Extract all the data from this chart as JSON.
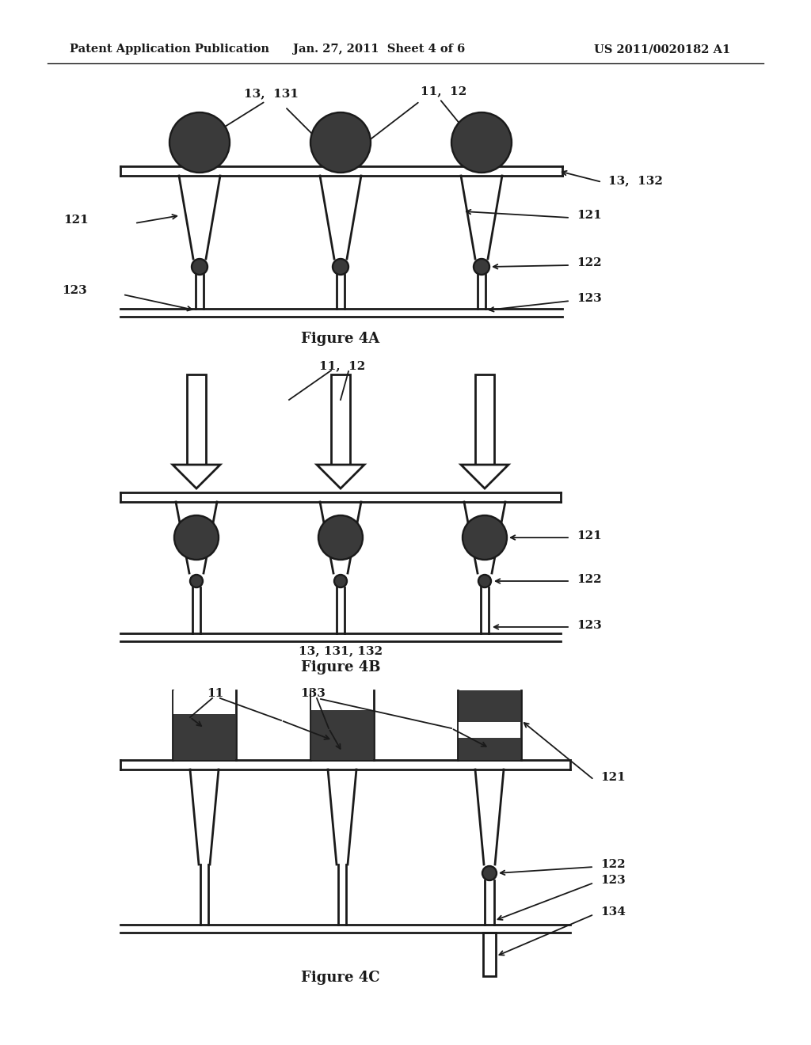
{
  "header_left": "Patent Application Publication",
  "header_mid": "Jan. 27, 2011  Sheet 4 of 6",
  "header_right": "US 2011/0020182 A1",
  "fig4a_caption": "Figure 4A",
  "fig4b_caption": "Figure 4B",
  "fig4c_caption": "Figure 4C",
  "fig4b_bottom_label": "13, 131, 132",
  "bg_color": "#ffffff",
  "line_color": "#1a1a1a",
  "dark_fill": "#3a3a3a"
}
